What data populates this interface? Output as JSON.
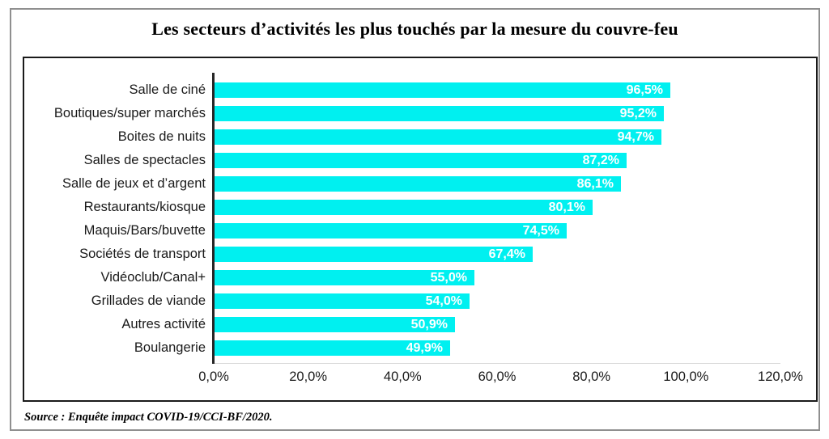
{
  "title": "Les secteurs d’activités les plus touchés par la mesure du couvre-feu",
  "source": "Source : Enquête impact COVID-19/CCI-BF/2020.",
  "colors": {
    "bar": "#00F0F0",
    "value_text": "#FFFFFF",
    "axis_line": "#262626",
    "frame_border": "#8F8F8F",
    "chart_border": "#1A1A1A",
    "baseline": "#D9D9D9"
  },
  "chart_data": {
    "type": "bar",
    "orientation": "horizontal",
    "title": "Les secteurs d’activités les plus touchés par la mesure du couvre-feu",
    "categories": [
      "Salle de ciné",
      "Boutiques/super marchés",
      "Boites de nuits",
      "Salles de spectacles",
      "Salle de jeux et d’argent",
      "Restaurants/kiosque",
      "Maquis/Bars/buvette",
      "Sociétés de transport",
      "Vidéoclub/Canal+",
      "Grillades de viande",
      "Autres activité",
      "Boulangerie"
    ],
    "values": [
      96.5,
      95.2,
      94.7,
      87.2,
      86.1,
      80.1,
      74.5,
      67.4,
      55.0,
      54.0,
      50.9,
      49.9
    ],
    "value_labels": [
      "96,5%",
      "95,2%",
      "94,7%",
      "87,2%",
      "86,1%",
      "80,1%",
      "74,5%",
      "67,4%",
      "55,0%",
      "54,0%",
      "50,9%",
      "49,9%"
    ],
    "xlabel": "",
    "ylabel": "",
    "xlim": [
      0,
      120
    ],
    "x_ticks": [
      "0,0%",
      "20,0%",
      "40,0%",
      "60,0%",
      "80,0%",
      "100,0%",
      "120,0%"
    ],
    "x_tick_values": [
      0,
      20,
      40,
      60,
      80,
      100,
      120
    ],
    "grid": false,
    "legend": false,
    "data_labels_inside_bars": true
  }
}
